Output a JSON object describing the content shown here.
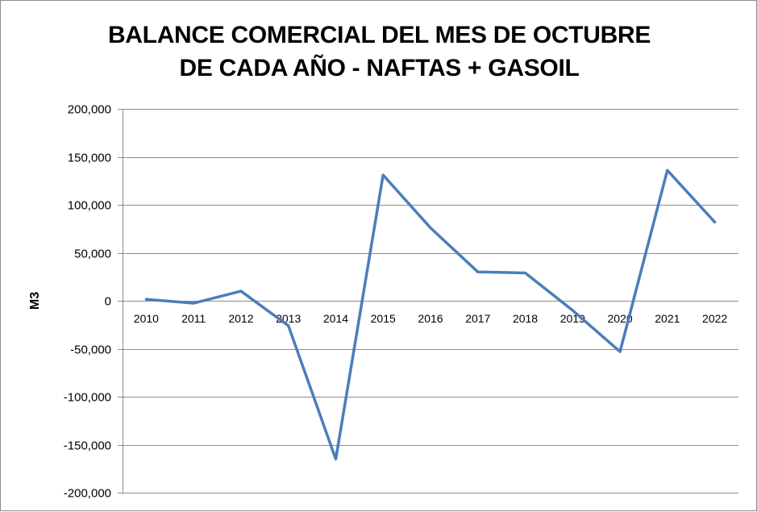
{
  "chart_data": {
    "type": "line",
    "title_lines": [
      "BALANCE COMERCIAL DEL MES DE OCTUBRE",
      "DE CADA AÑO - NAFTAS + GASOIL"
    ],
    "xlabel": "",
    "ylabel": "M3",
    "categories": [
      "2010",
      "2011",
      "2012",
      "2013",
      "2014",
      "2015",
      "2016",
      "2017",
      "2018",
      "2019",
      "2020",
      "2021",
      "2022"
    ],
    "series": [
      {
        "values": [
          1500,
          -2500,
          10000,
          -26000,
          -165000,
          131000,
          76000,
          30000,
          29000,
          -10000,
          -53000,
          136000,
          82000
        ],
        "color": "#4a7ebb"
      }
    ],
    "ylim": [
      -200000,
      200000
    ],
    "yticks": [
      200000,
      150000,
      100000,
      50000,
      0,
      -50000,
      -100000,
      -150000,
      -200000
    ],
    "ytick_labels": [
      "200,000",
      "150,000",
      "100,000",
      "50,000",
      "0",
      "-50,000",
      "-100,000",
      "-150,000",
      "-200,000"
    ],
    "grid": true,
    "legend": "none",
    "colors": {
      "gridline": "#8c8c8c",
      "axis": "#8c8c8c",
      "line": "#4a7ebb"
    }
  }
}
